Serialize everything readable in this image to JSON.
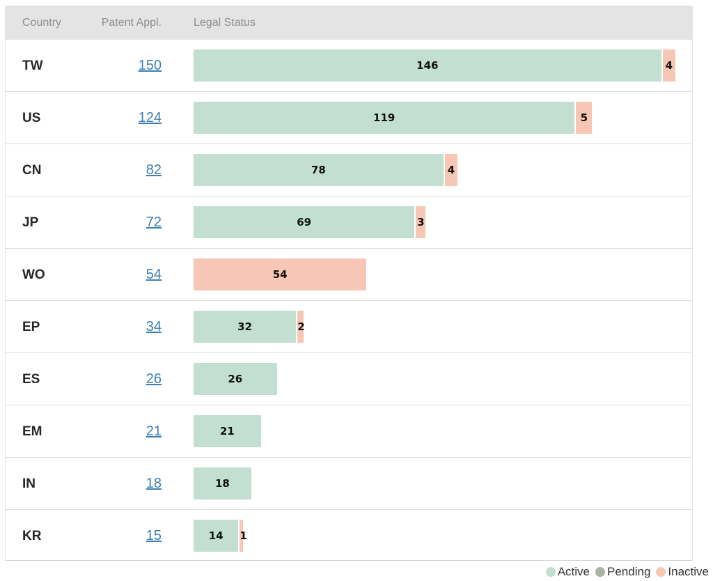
{
  "header": {
    "country": "Country",
    "patent_appl": "Patent Appl.",
    "legal_status": "Legal Status"
  },
  "legend": [
    {
      "label": "Active",
      "color": "#c2dfd1"
    },
    {
      "label": "Pending",
      "color": "#a9b3a5"
    },
    {
      "label": "Inactive",
      "color": "#f8c6b4"
    }
  ],
  "chart_data": {
    "type": "bar",
    "orientation": "horizontal",
    "stacked": true,
    "xlabel": "Legal Status",
    "categories": [
      "TW",
      "US",
      "CN",
      "JP",
      "WO",
      "EP",
      "ES",
      "EM",
      "IN",
      "KR"
    ],
    "totals": [
      150,
      124,
      82,
      72,
      54,
      34,
      26,
      21,
      18,
      15
    ],
    "series": [
      {
        "name": "Active",
        "color": "#c2dfd1",
        "values": [
          146,
          119,
          78,
          69,
          0,
          32,
          26,
          21,
          18,
          14
        ]
      },
      {
        "name": "Pending",
        "color": "#a9b3a5",
        "values": [
          0,
          0,
          0,
          0,
          0,
          0,
          0,
          0,
          0,
          0
        ]
      },
      {
        "name": "Inactive",
        "color": "#f8c6b4",
        "values": [
          4,
          5,
          4,
          3,
          54,
          2,
          0,
          0,
          0,
          1
        ]
      }
    ],
    "legend_position": "bottom-right"
  }
}
